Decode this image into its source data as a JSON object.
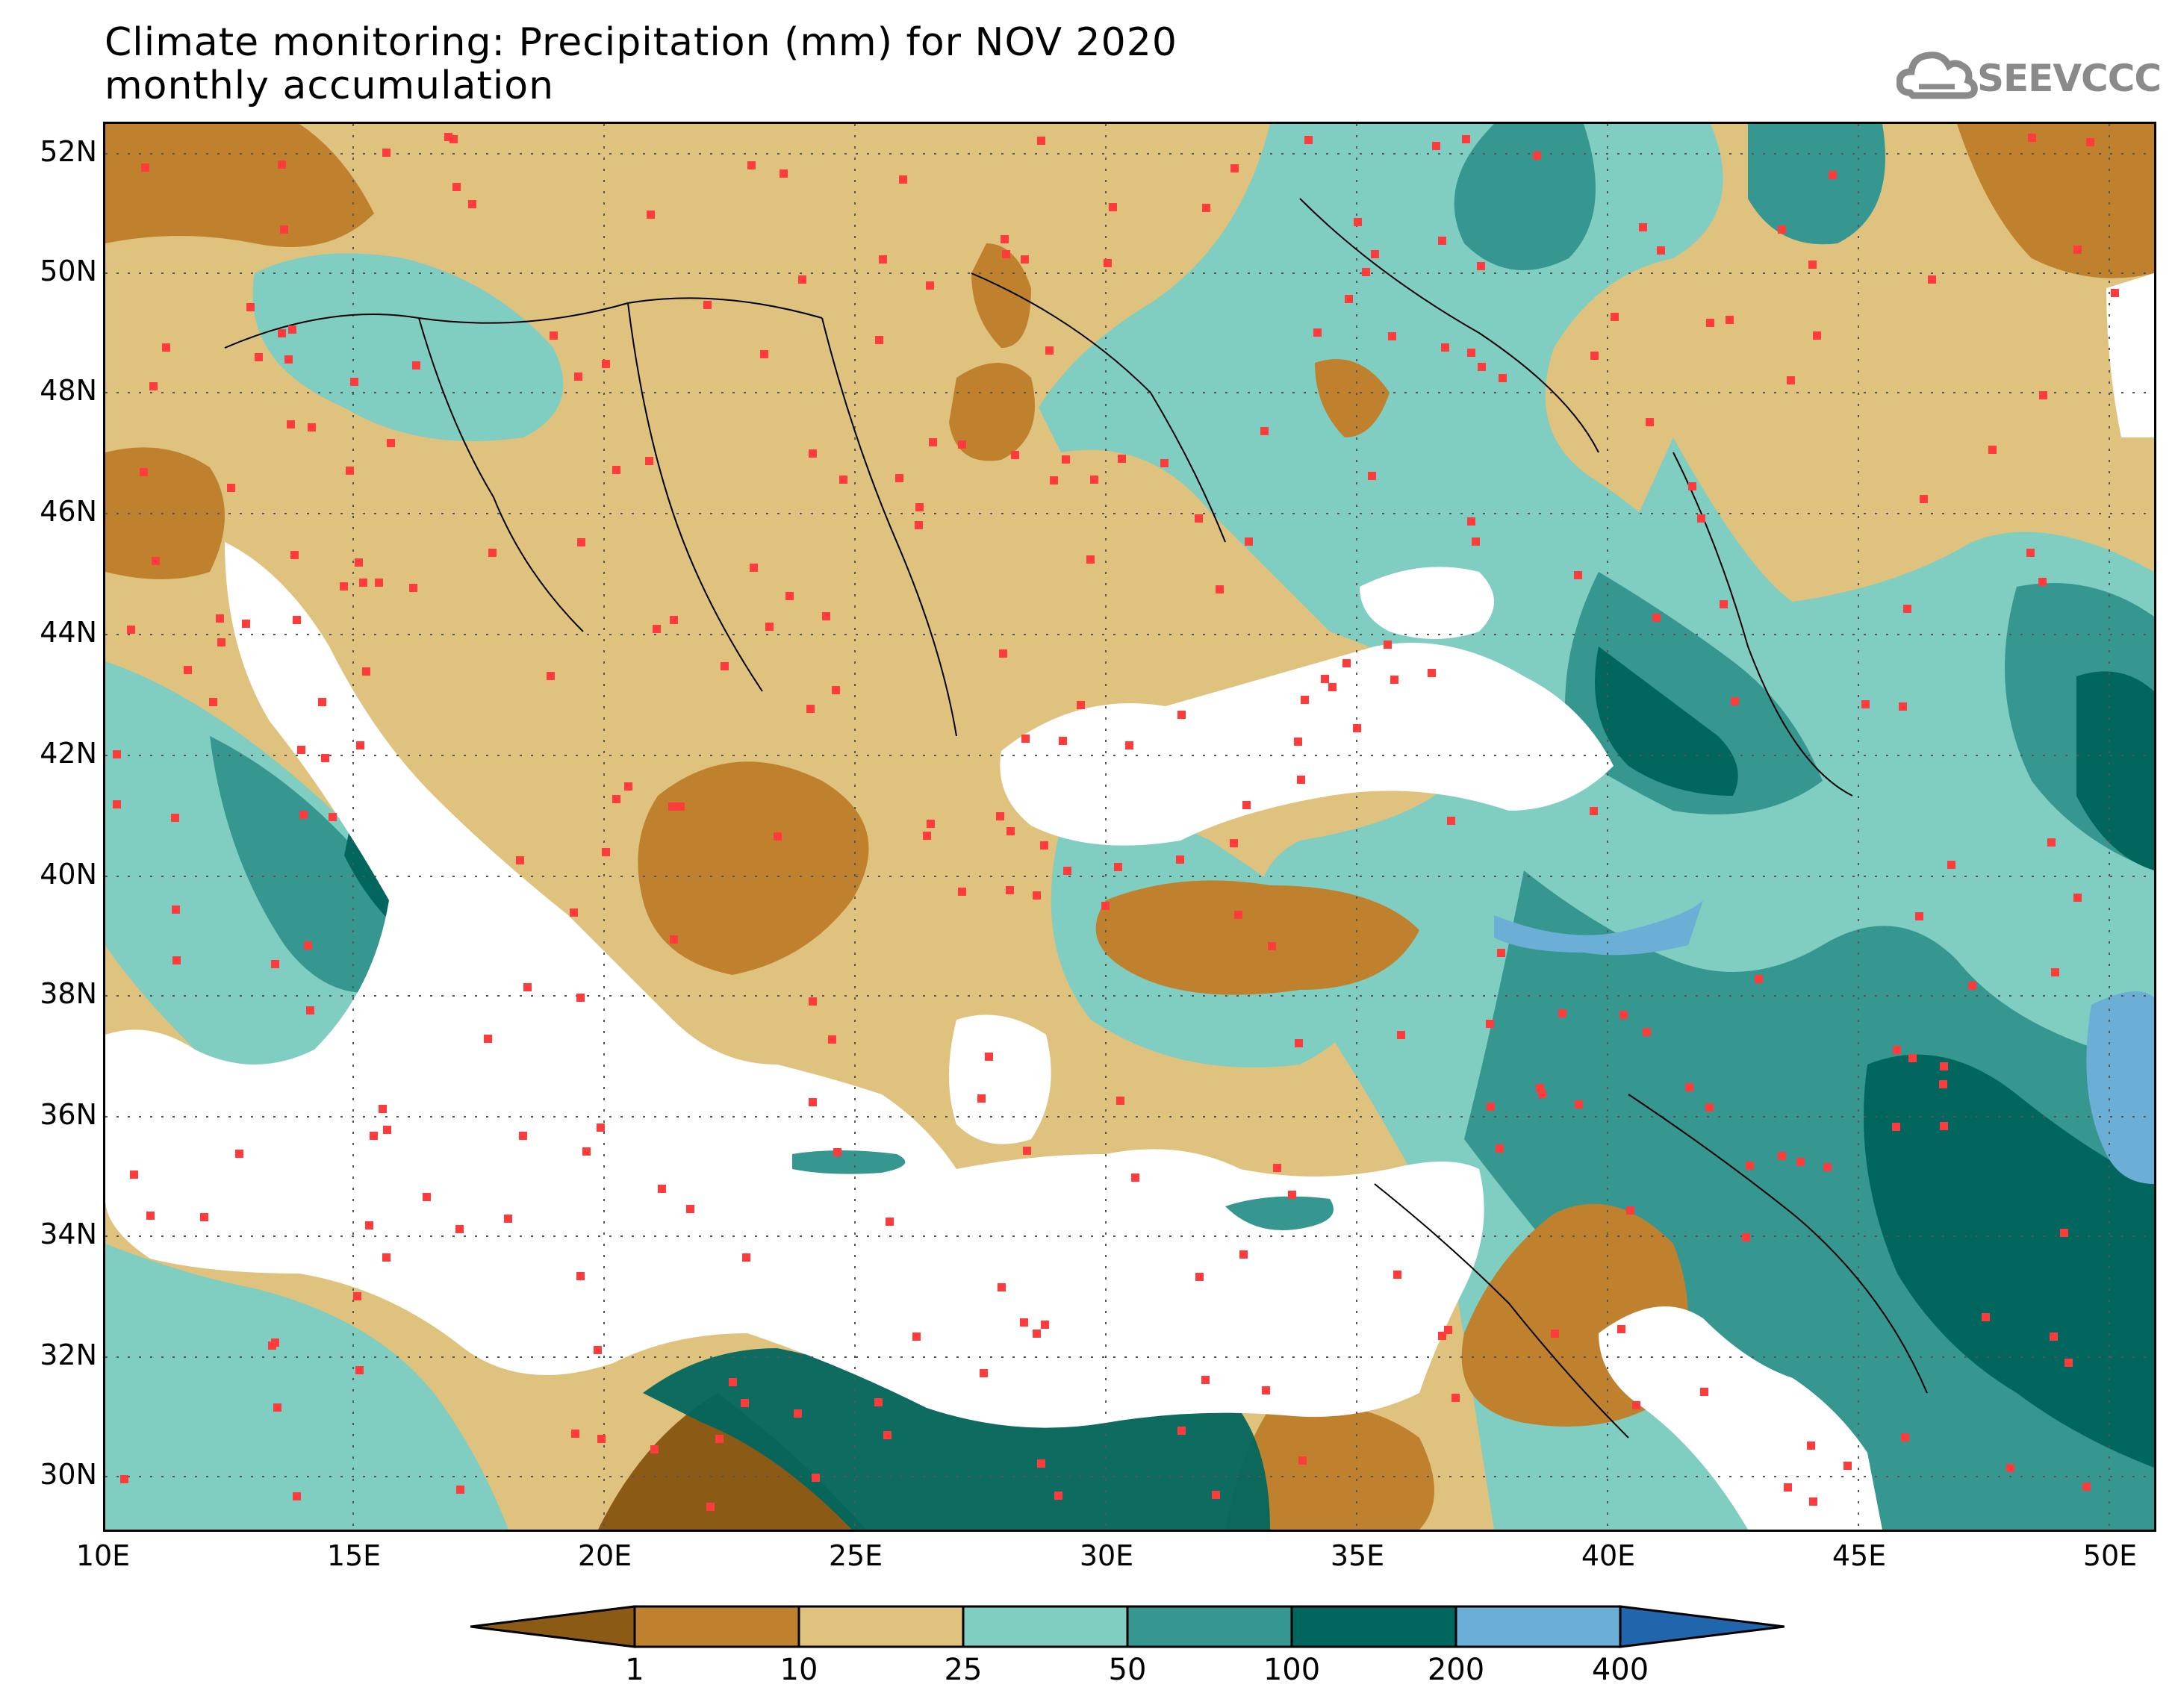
{
  "title": {
    "line1": "Climate monitoring: Precipitation (mm) for NOV 2020",
    "line2": "monthly accumulation"
  },
  "logo": {
    "text": "SEEVCCC",
    "icon": "cloud-icon",
    "color": "#8a8a8a"
  },
  "map": {
    "lat_labels": [
      "52N",
      "50N",
      "48N",
      "46N",
      "44N",
      "42N",
      "40N",
      "38N",
      "36N",
      "34N",
      "32N",
      "30N"
    ],
    "lon_labels": [
      "10E",
      "15E",
      "20E",
      "25E",
      "30E",
      "35E",
      "40E",
      "45E",
      "50E"
    ],
    "station_color": "#ff3b3b"
  },
  "legend": {
    "bins": [
      {
        "label": "<1",
        "color": "#8b5a14"
      },
      {
        "label": "1-10",
        "color": "#bf812d"
      },
      {
        "label": "10-25",
        "color": "#dfc27d"
      },
      {
        "label": "25-50",
        "color": "#80cdc1"
      },
      {
        "label": "50-100",
        "color": "#35978f"
      },
      {
        "label": "100-200",
        "color": "#01665e"
      },
      {
        "label": "200-400",
        "color": "#6baed6"
      },
      {
        "label": ">400",
        "color": "#2166ac"
      }
    ],
    "ticks": [
      "1",
      "10",
      "25",
      "50",
      "100",
      "200",
      "400"
    ]
  }
}
